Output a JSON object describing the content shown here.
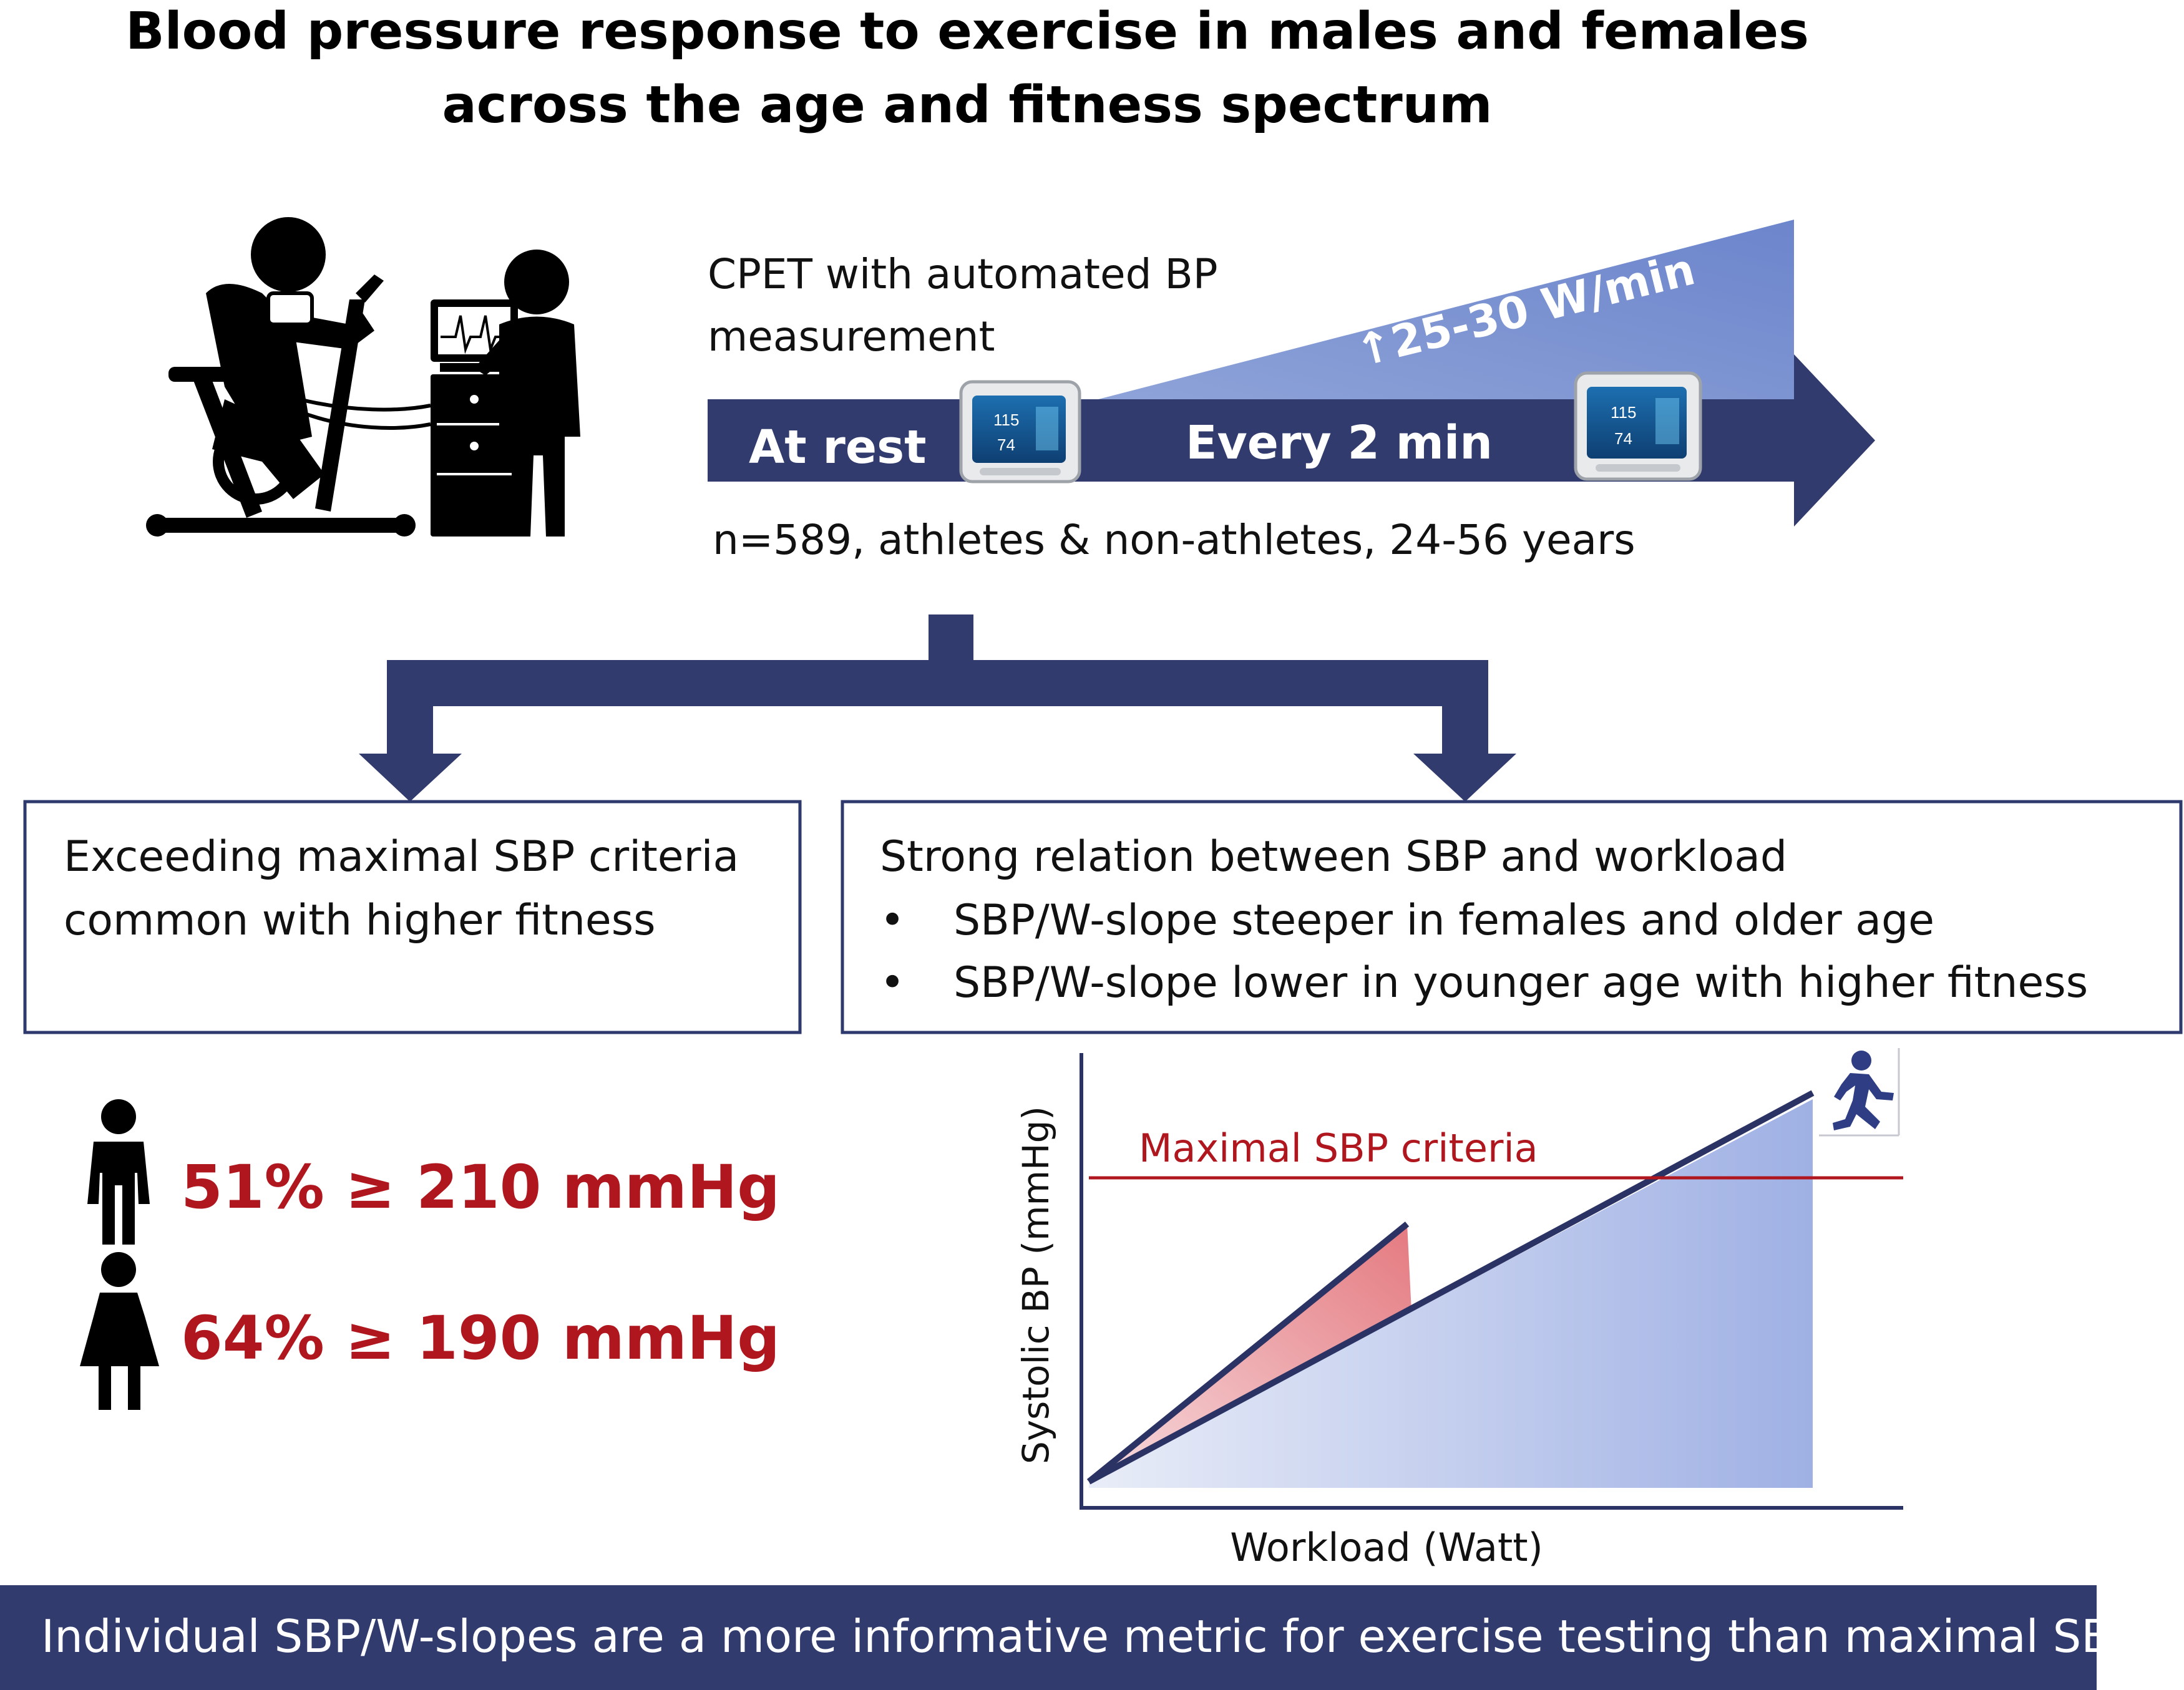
{
  "title": {
    "line1": "Blood pressure response to exercise in males and females",
    "line2": "across the age and fitness spectrum"
  },
  "protocol": {
    "description_line1": "CPET with automated BP",
    "description_line2": "measurement",
    "ramp_label_arrow": "↑",
    "ramp_label": "25-30 W/min",
    "at_rest_label": "At rest",
    "interval_label": "Every 2 min",
    "monitor_reading_top": "115",
    "monitor_reading_bottom": "74",
    "cohort": "n=589, athletes & non-athletes, 24-56 years"
  },
  "left_box": {
    "line1": "Exceeding maximal SBP criteria",
    "line2": "common with higher fitness"
  },
  "right_box": {
    "heading": "Strong relation between SBP and workload",
    "bullets": [
      "SBP/W-slope steeper in females and older age",
      "SBP/W-slope lower in younger age with higher fitness"
    ]
  },
  "stats": [
    {
      "percent": "51%",
      "op": "≥",
      "value": "210 mmHg",
      "icon": "male-person-icon"
    },
    {
      "percent": "64%",
      "op": "≥",
      "value": "190 mmHg",
      "icon": "female-person-icon"
    }
  ],
  "chart": {
    "criteria_label": "Maximal SBP criteria",
    "y_axis_label": "Systolic BP (mmHg)",
    "x_axis_label": "Workload (Watt)"
  },
  "footer": {
    "text": "Individual SBP/W-slopes are a more informative metric for exercise testing than maximal SBP"
  },
  "colors": {
    "navy": "#313b6e",
    "red": "#b0161e",
    "blue_fill": "#7b92d0",
    "red_fill": "#e47a80",
    "box_border": "#2e3a6e"
  }
}
